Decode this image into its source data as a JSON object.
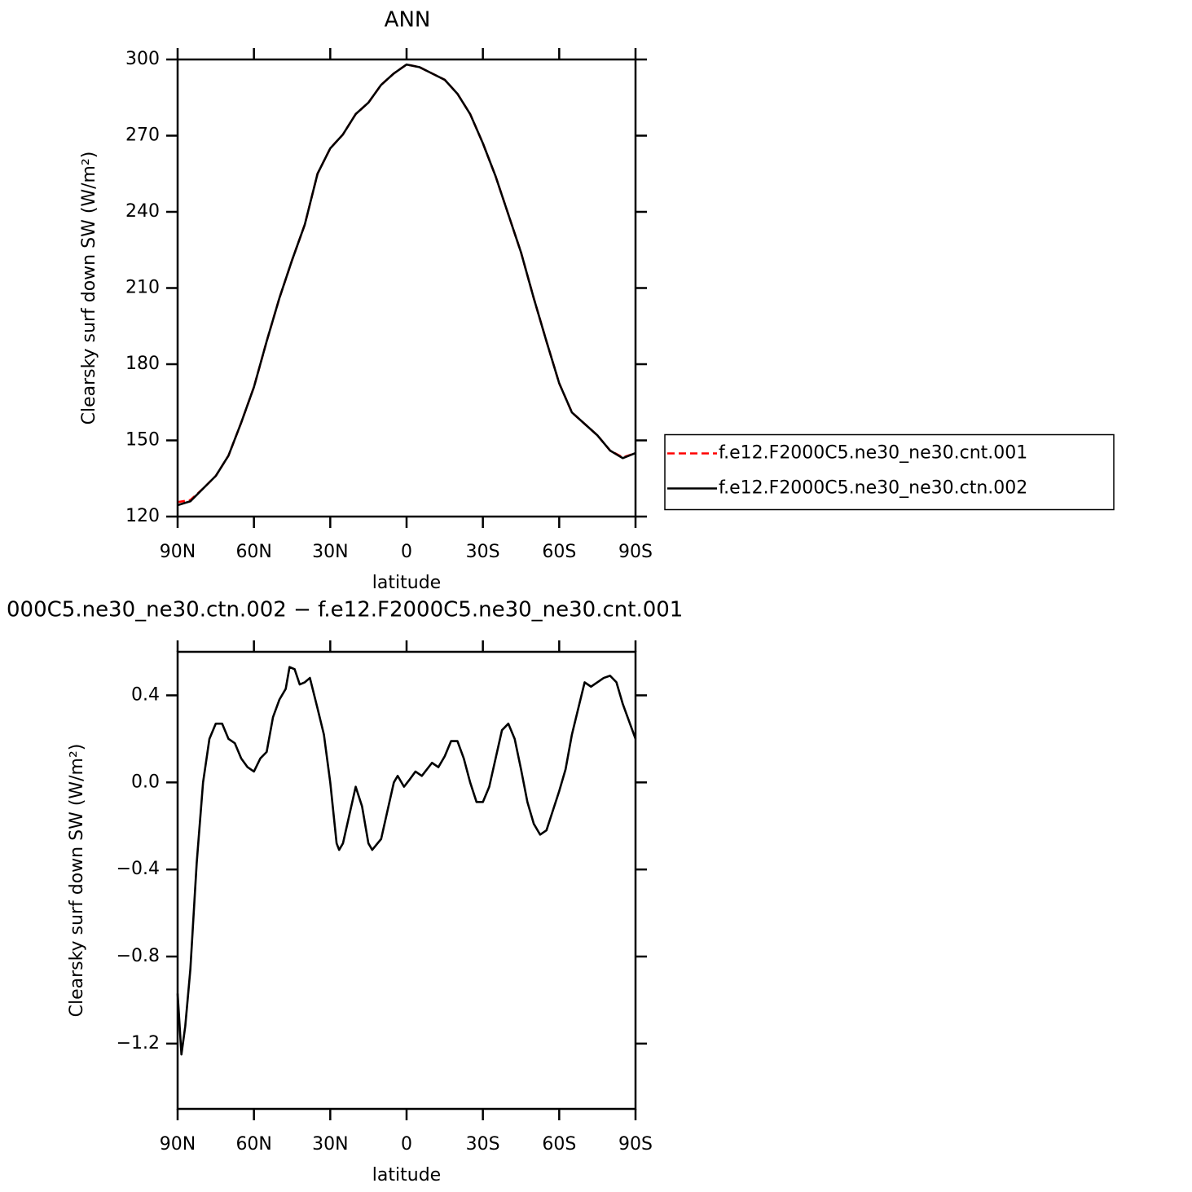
{
  "chart_data": [
    {
      "type": "line",
      "title": "ANN",
      "xlabel": "latitude",
      "ylabel": "Clearsky surf down SW (W/m²)",
      "x": [
        90,
        85,
        80,
        75,
        70,
        65,
        60,
        55,
        50,
        45,
        40,
        35,
        30,
        25,
        20,
        15,
        10,
        5,
        0,
        -5,
        -10,
        -15,
        -20,
        -25,
        -30,
        -35,
        -40,
        -45,
        -50,
        -55,
        -60,
        -65,
        -70,
        -75,
        -80,
        -85,
        -90
      ],
      "series": [
        {
          "name": "f.e12.F2000C5.ne30_ne30.cnt.001",
          "color": "#ff0000",
          "dash": true,
          "values": [
            125.7,
            126.5,
            131,
            136,
            144,
            157,
            171,
            189,
            206,
            221,
            235,
            255,
            265,
            270.5,
            278.5,
            283,
            290,
            294.5,
            298,
            297,
            294.5,
            292,
            286.5,
            278.5,
            267,
            254,
            239,
            224,
            206,
            189,
            172.5,
            161,
            156.5,
            152,
            146,
            143.3,
            145
          ]
        },
        {
          "name": "f.e12.F2000C5.ne30_ne30.ctn.002",
          "color": "#000000",
          "dash": false,
          "values": [
            124.5,
            126,
            131,
            136,
            144,
            157,
            171,
            189,
            206,
            221,
            235,
            255,
            265,
            270.5,
            278.5,
            283,
            290,
            294.5,
            298,
            297,
            294.5,
            292,
            286.5,
            278.5,
            267,
            254,
            239,
            224,
            206,
            189,
            172.5,
            161,
            156.5,
            152,
            146,
            143,
            145
          ]
        }
      ],
      "xlim": [
        90,
        -90
      ],
      "ylim": [
        120,
        300
      ],
      "xticks": [
        {
          "value": 90,
          "label": "90N"
        },
        {
          "value": 60,
          "label": "60N"
        },
        {
          "value": 30,
          "label": "30N"
        },
        0,
        {
          "value": -30,
          "label": "30S"
        },
        {
          "value": -60,
          "label": "60S"
        },
        {
          "value": -90,
          "label": "90S"
        }
      ],
      "yticks": [
        120,
        150,
        180,
        210,
        240,
        270,
        300
      ],
      "legend": "right"
    },
    {
      "type": "line",
      "title": "000C5.ne30_ne30.ctn.002 − f.e12.F2000C5.ne30_ne30.cnt.001",
      "xlabel": "latitude",
      "ylabel": "Clearsky surf down SW (W/m²)",
      "x": [
        90,
        88.5,
        87,
        85,
        82.5,
        80,
        77.5,
        75,
        72.5,
        70,
        67.5,
        65,
        62.5,
        60,
        57.5,
        55,
        52.5,
        50,
        47.5,
        46,
        44,
        42,
        40,
        38,
        35,
        32.5,
        30,
        27.5,
        26.5,
        25,
        22.5,
        20,
        17.5,
        15,
        13.5,
        10,
        7.5,
        5,
        3.5,
        1,
        -1,
        -3.5,
        -6,
        -10,
        -12.5,
        -15,
        -17.5,
        -20,
        -22.5,
        -25,
        -27.5,
        -30,
        -32.5,
        -35,
        -37.5,
        -40,
        -42.5,
        -45,
        -47.5,
        -50,
        -52.5,
        -55,
        -57.5,
        -60,
        -62.5,
        -65,
        -67.5,
        -70,
        -72.5,
        -75,
        -77.5,
        -80,
        -82.5,
        -85,
        -87.5,
        -90
      ],
      "series": [
        {
          "color": "#000000",
          "dash": false,
          "values": [
            -0.97,
            -1.25,
            -1.12,
            -0.86,
            -0.37,
            0.0,
            0.2,
            0.27,
            0.27,
            0.2,
            0.18,
            0.11,
            0.07,
            0.05,
            0.11,
            0.14,
            0.3,
            0.38,
            0.43,
            0.53,
            0.52,
            0.45,
            0.46,
            0.48,
            0.34,
            0.22,
            0.0,
            -0.28,
            -0.31,
            -0.28,
            -0.15,
            -0.02,
            -0.11,
            -0.28,
            -0.31,
            -0.26,
            -0.13,
            0.0,
            0.03,
            -0.02,
            0.01,
            0.05,
            0.03,
            0.09,
            0.07,
            0.12,
            0.19,
            0.19,
            0.11,
            0.0,
            -0.09,
            -0.09,
            -0.02,
            0.11,
            0.24,
            0.27,
            0.2,
            0.06,
            -0.09,
            -0.19,
            -0.24,
            -0.22,
            -0.13,
            -0.04,
            0.06,
            0.22,
            0.34,
            0.46,
            0.44,
            0.46,
            0.48,
            0.49,
            0.46,
            0.36,
            0.28,
            0.2
          ]
        }
      ],
      "xlim": [
        90,
        -90
      ],
      "ylim": [
        -1.5,
        0.6
      ],
      "xticks": [
        {
          "value": 90,
          "label": "90N"
        },
        {
          "value": 60,
          "label": "60N"
        },
        {
          "value": 30,
          "label": "30N"
        },
        0,
        {
          "value": -30,
          "label": "30S"
        },
        {
          "value": -60,
          "label": "60S"
        },
        {
          "value": -90,
          "label": "90S"
        }
      ],
      "yticks": [
        {
          "value": -1.2,
          "label": "−1.2"
        },
        {
          "value": -0.8,
          "label": "−0.8"
        },
        {
          "value": -0.4,
          "label": "−0.4"
        },
        {
          "value": 0,
          "label": "0.0"
        },
        0.4
      ]
    }
  ]
}
